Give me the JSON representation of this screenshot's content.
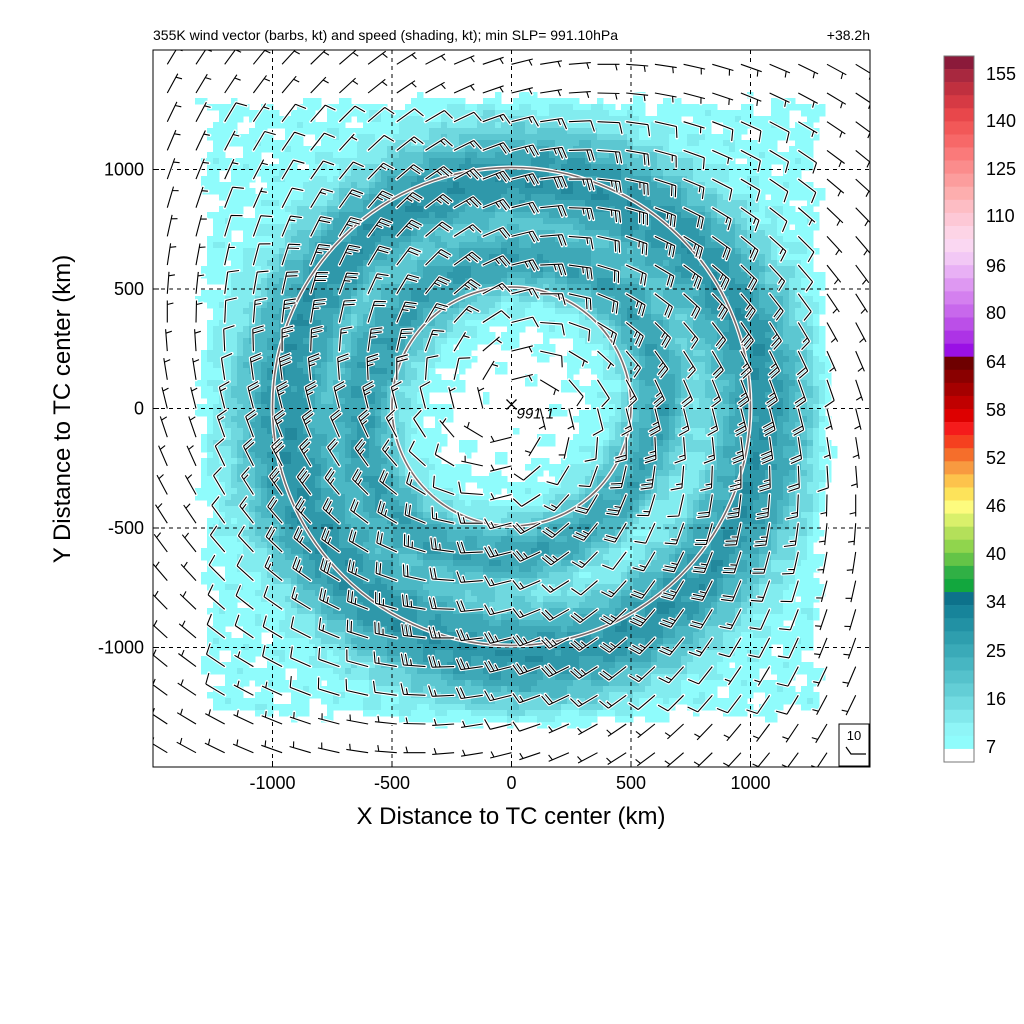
{
  "chart_data": {
    "type": "heatmap",
    "title": "355K wind vector (barbs, kt) and speed (shading, kt); min SLP= 991.10hPa",
    "forecast_hour_label": "+38.2h",
    "xlabel": "X Distance to TC center (km)",
    "ylabel": "Y Distance to TC center (km)",
    "xlim": [
      -1500,
      1500
    ],
    "ylim": [
      -1500,
      1500
    ],
    "x_ticks": [
      -1000,
      -500,
      0,
      500,
      1000
    ],
    "y_ticks": [
      1000,
      500,
      0,
      -500,
      -1000
    ],
    "x_tick_labels": [
      "-1000",
      "-500",
      "0",
      "500",
      "1000"
    ],
    "y_tick_labels": [
      "1000",
      "500",
      "0",
      "-500",
      "-1000"
    ],
    "grid": true,
    "range_rings_km": [
      500,
      1000
    ],
    "center": {
      "x": 0,
      "y": 0,
      "label": "991.1"
    },
    "reference_barb_label": "10",
    "colorbar": {
      "position": "right",
      "labels": [
        "155",
        "140",
        "125",
        "110",
        "96",
        "80",
        "64",
        "58",
        "52",
        "46",
        "40",
        "34",
        "25",
        "16",
        "7"
      ],
      "levels_top_to_bottom": [
        {
          "color": "#8b1a3a"
        },
        {
          "color": "#a8283f"
        },
        {
          "color": "#c0303f"
        },
        {
          "color": "#d63a44"
        },
        {
          "color": "#e8474b"
        },
        {
          "color": "#f25858"
        },
        {
          "color": "#f76868"
        },
        {
          "color": "#fa7a7a"
        },
        {
          "color": "#fb8c8c"
        },
        {
          "color": "#fc9d9d"
        },
        {
          "color": "#fdaeae"
        },
        {
          "color": "#fdbdc4"
        },
        {
          "color": "#fdc8d6"
        },
        {
          "color": "#fdd4e6"
        },
        {
          "color": "#fad7f2"
        },
        {
          "color": "#f2c8f5"
        },
        {
          "color": "#e8b0f5"
        },
        {
          "color": "#de98f2"
        },
        {
          "color": "#d480ef"
        },
        {
          "color": "#c868ec"
        },
        {
          "color": "#bb4fe8"
        },
        {
          "color": "#ad33e6"
        },
        {
          "color": "#9a10e5"
        },
        {
          "color": "#6e0000"
        },
        {
          "color": "#8a0000"
        },
        {
          "color": "#a50000"
        },
        {
          "color": "#c00000"
        },
        {
          "color": "#dd0000"
        },
        {
          "color": "#f51b1b"
        },
        {
          "color": "#f5401f"
        },
        {
          "color": "#f56e2b"
        },
        {
          "color": "#f89a40"
        },
        {
          "color": "#fdc34c"
        },
        {
          "color": "#fde35a"
        },
        {
          "color": "#fdfb7e"
        },
        {
          "color": "#d9f06b"
        },
        {
          "color": "#b4e05a"
        },
        {
          "color": "#90d54d"
        },
        {
          "color": "#64c447"
        },
        {
          "color": "#30b045"
        },
        {
          "color": "#12a73e"
        },
        {
          "color": "#0d728b"
        },
        {
          "color": "#17849a"
        },
        {
          "color": "#2291a4"
        },
        {
          "color": "#2e9eae"
        },
        {
          "color": "#3aaab8"
        },
        {
          "color": "#47b6c2"
        },
        {
          "color": "#55c2cc"
        },
        {
          "color": "#63ced6"
        },
        {
          "color": "#72dbe1"
        },
        {
          "color": "#82e8ec"
        },
        {
          "color": "#8ff5f7"
        },
        {
          "color": "#8ffcfc"
        },
        {
          "color": "#ffffff"
        }
      ]
    },
    "speed_field_kt": {
      "description_free": true,
      "center_speed": 6,
      "inner_min_radius_km": 200,
      "band1_radius_km": 620,
      "band1_speed": 24,
      "gap_radius_km": 760,
      "gap_speed": 17,
      "band2_radius_km": 1000,
      "band2_speed": 27,
      "outer_speed": 8
    }
  }
}
